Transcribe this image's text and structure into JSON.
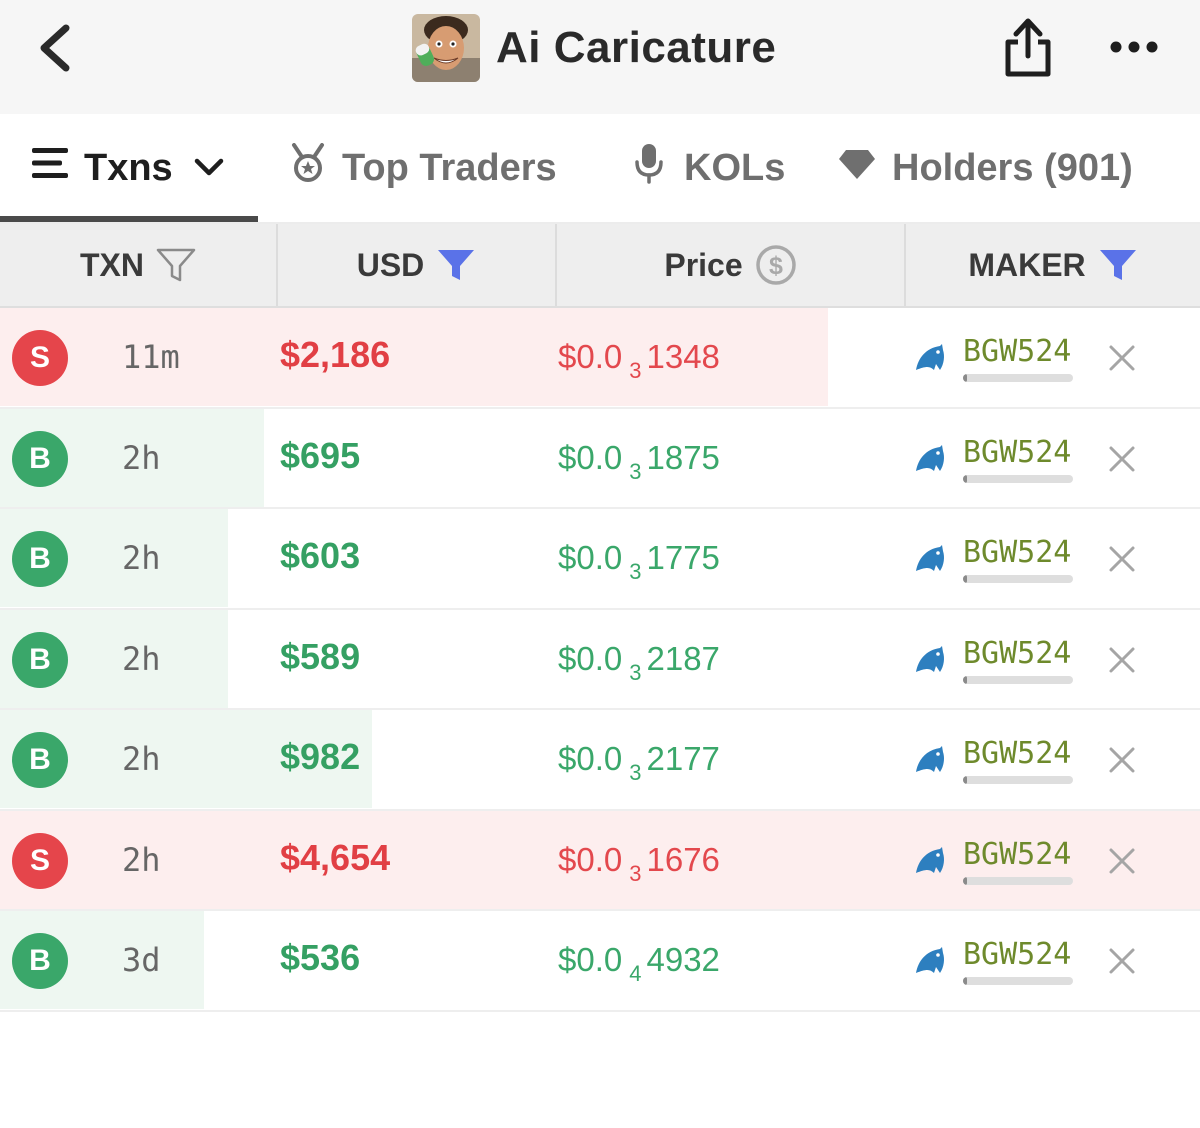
{
  "header": {
    "title": "Ai Caricature",
    "back_icon": "chevron-left-icon",
    "share_icon": "share-icon",
    "more_icon": "more-horizontal-icon"
  },
  "tabs": [
    {
      "label": "Txns",
      "icon": "list-icon",
      "active": true
    },
    {
      "label": "Top Traders",
      "icon": "medal-icon",
      "active": false
    },
    {
      "label": "KOLs",
      "icon": "microphone-icon",
      "active": false
    },
    {
      "label": "Holders (901)",
      "icon": "diamond-icon",
      "active": false
    }
  ],
  "columns": [
    {
      "label": "TXN",
      "icon": "filter-outline-icon"
    },
    {
      "label": "USD",
      "icon": "filter-filled-icon"
    },
    {
      "label": "Price",
      "icon": "dollar-coin-icon"
    },
    {
      "label": "MAKER",
      "icon": "filter-filled-icon"
    }
  ],
  "colors": {
    "sell": "#e5454b",
    "buy": "#3aa76a",
    "filter_active": "#5a72e8",
    "maker_text": "#6e8a2c"
  },
  "rows": [
    {
      "type": "S",
      "age": "11m",
      "usd": "$2,186",
      "price_prefix": "$0.0",
      "price_zeros": "3",
      "price_digits": "1348",
      "maker": "BGW524",
      "bg_fill": 0.69
    },
    {
      "type": "B",
      "age": "2h",
      "usd": "$695",
      "price_prefix": "$0.0",
      "price_zeros": "3",
      "price_digits": "1875",
      "maker": "BGW524",
      "bg_fill": 0.22
    },
    {
      "type": "B",
      "age": "2h",
      "usd": "$603",
      "price_prefix": "$0.0",
      "price_zeros": "3",
      "price_digits": "1775",
      "maker": "BGW524",
      "bg_fill": 0.19
    },
    {
      "type": "B",
      "age": "2h",
      "usd": "$589",
      "price_prefix": "$0.0",
      "price_zeros": "3",
      "price_digits": "2187",
      "maker": "BGW524",
      "bg_fill": 0.19
    },
    {
      "type": "B",
      "age": "2h",
      "usd": "$982",
      "price_prefix": "$0.0",
      "price_zeros": "3",
      "price_digits": "2177",
      "maker": "BGW524",
      "bg_fill": 0.31
    },
    {
      "type": "S",
      "age": "2h",
      "usd": "$4,654",
      "price_prefix": "$0.0",
      "price_zeros": "3",
      "price_digits": "1676",
      "maker": "BGW524",
      "bg_fill": 1.0
    },
    {
      "type": "B",
      "age": "3d",
      "usd": "$536",
      "price_prefix": "$0.0",
      "price_zeros": "4",
      "price_digits": "4932",
      "maker": "BGW524",
      "bg_fill": 0.17
    }
  ]
}
